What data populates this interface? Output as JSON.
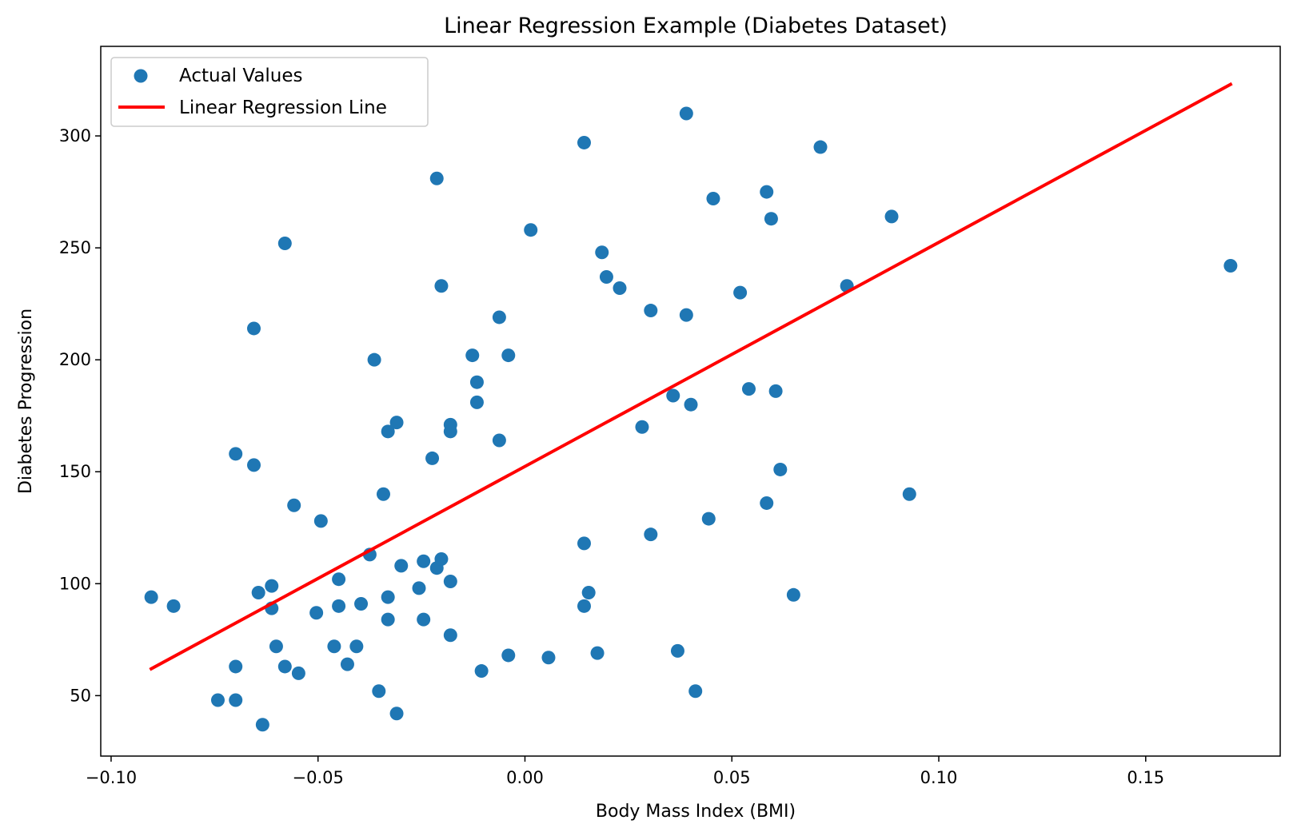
{
  "chart_data": {
    "type": "scatter",
    "title": "Linear Regression Example (Diabetes Dataset)",
    "xlabel": "Body Mass Index (BMI)",
    "ylabel": "Diabetes Progression",
    "xlim": [
      -0.1025,
      0.1825
    ],
    "ylim": [
      23,
      340
    ],
    "xticks": [
      -0.1,
      -0.05,
      0.0,
      0.05,
      0.1,
      0.15
    ],
    "xtick_labels": [
      "−0.10",
      "−0.05",
      "0.00",
      "0.05",
      "0.10",
      "0.15"
    ],
    "yticks": [
      50,
      100,
      150,
      200,
      250,
      300
    ],
    "ytick_labels": [
      "50",
      "100",
      "150",
      "200",
      "250",
      "300"
    ],
    "grid": false,
    "legend_position": "top-left",
    "series": [
      {
        "name": "Actual Values",
        "kind": "scatter",
        "color": "#1f77b4",
        "points": [
          [
            -0.0903,
            94
          ],
          [
            -0.0849,
            90
          ],
          [
            -0.0742,
            48
          ],
          [
            -0.0699,
            158
          ],
          [
            -0.0699,
            63
          ],
          [
            -0.0699,
            48
          ],
          [
            -0.0655,
            214
          ],
          [
            -0.0655,
            153
          ],
          [
            -0.0644,
            96
          ],
          [
            -0.0634,
            37
          ],
          [
            -0.0612,
            99
          ],
          [
            -0.0612,
            89
          ],
          [
            -0.0601,
            72
          ],
          [
            -0.058,
            252
          ],
          [
            -0.058,
            63
          ],
          [
            -0.0558,
            135
          ],
          [
            -0.0547,
            60
          ],
          [
            -0.0504,
            87
          ],
          [
            -0.0493,
            128
          ],
          [
            -0.0461,
            72
          ],
          [
            -0.045,
            102
          ],
          [
            -0.045,
            90
          ],
          [
            -0.0429,
            64
          ],
          [
            -0.0407,
            72
          ],
          [
            -0.0396,
            91
          ],
          [
            -0.0375,
            113
          ],
          [
            -0.0364,
            200
          ],
          [
            -0.0353,
            52
          ],
          [
            -0.0342,
            140
          ],
          [
            -0.0331,
            168
          ],
          [
            -0.0331,
            94
          ],
          [
            -0.0331,
            84
          ],
          [
            -0.031,
            172
          ],
          [
            -0.031,
            42
          ],
          [
            -0.0299,
            108
          ],
          [
            -0.0256,
            98
          ],
          [
            -0.0245,
            110
          ],
          [
            -0.0245,
            84
          ],
          [
            -0.0224,
            156
          ],
          [
            -0.0213,
            281
          ],
          [
            -0.0213,
            107
          ],
          [
            -0.0202,
            233
          ],
          [
            -0.0202,
            111
          ],
          [
            -0.018,
            171
          ],
          [
            -0.018,
            168
          ],
          [
            -0.018,
            101
          ],
          [
            -0.018,
            77
          ],
          [
            -0.0127,
            202
          ],
          [
            -0.0116,
            190
          ],
          [
            -0.0116,
            181
          ],
          [
            -0.0105,
            61
          ],
          [
            -0.0062,
            219
          ],
          [
            -0.0062,
            164
          ],
          [
            -0.004,
            202
          ],
          [
            -0.004,
            68
          ],
          [
            0.0014,
            258
          ],
          [
            0.0057,
            67
          ],
          [
            0.0143,
            297
          ],
          [
            0.0143,
            118
          ],
          [
            0.0143,
            90
          ],
          [
            0.0154,
            96
          ],
          [
            0.0175,
            69
          ],
          [
            0.0186,
            248
          ],
          [
            0.0197,
            237
          ],
          [
            0.0229,
            232
          ],
          [
            0.0283,
            170
          ],
          [
            0.0304,
            222
          ],
          [
            0.0304,
            122
          ],
          [
            0.0358,
            184
          ],
          [
            0.0369,
            70
          ],
          [
            0.039,
            310
          ],
          [
            0.039,
            220
          ],
          [
            0.0401,
            180
          ],
          [
            0.0412,
            52
          ],
          [
            0.0444,
            129
          ],
          [
            0.0455,
            272
          ],
          [
            0.052,
            230
          ],
          [
            0.0541,
            187
          ],
          [
            0.0584,
            275
          ],
          [
            0.0584,
            136
          ],
          [
            0.0595,
            263
          ],
          [
            0.0606,
            186
          ],
          [
            0.0617,
            151
          ],
          [
            0.0649,
            95
          ],
          [
            0.0714,
            295
          ],
          [
            0.0778,
            233
          ],
          [
            0.0886,
            264
          ],
          [
            0.0929,
            140
          ],
          [
            0.1705,
            242
          ]
        ]
      },
      {
        "name": "Linear Regression Line",
        "kind": "line",
        "color": "#ff0000",
        "points": [
          [
            -0.0903,
            62
          ],
          [
            0.1705,
            323
          ]
        ]
      }
    ]
  }
}
